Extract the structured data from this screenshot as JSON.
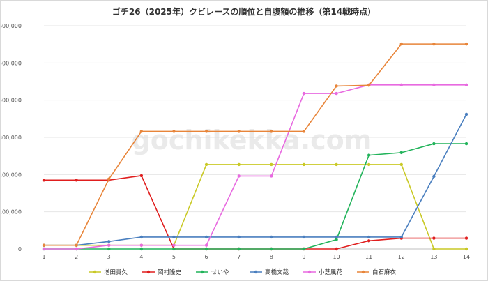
{
  "chart_data": {
    "type": "line",
    "title": "ゴチ26（2025年）クビレースの順位と自腹額の推移（第14戦時点）",
    "xlabel": "",
    "ylabel": "",
    "x": [
      1,
      2,
      3,
      4,
      5,
      6,
      7,
      8,
      9,
      10,
      11,
      12,
      13,
      14
    ],
    "ylim": [
      0,
      600000
    ],
    "y_ticks": [
      "0",
      "100,000",
      "200,000",
      "300,000",
      "400,000",
      "500,000",
      "600,000"
    ],
    "grid": "horizontal",
    "legend_position": "bottom",
    "watermark": "gochikekka.com",
    "series": [
      {
        "name": "増田貴久",
        "color": "#c9c926",
        "values": [
          10000,
          10000,
          10000,
          10000,
          10000,
          227000,
          227000,
          227000,
          227000,
          227000,
          227000,
          227000,
          0,
          0
        ]
      },
      {
        "name": "岡村隆史",
        "color": "#e01e1e",
        "values": [
          185000,
          185000,
          185000,
          197000,
          0,
          0,
          0,
          0,
          0,
          0,
          22000,
          29000,
          29000,
          29000
        ]
      },
      {
        "name": "せいや",
        "color": "#21b35a",
        "values": [
          0,
          0,
          0,
          0,
          0,
          0,
          0,
          0,
          0,
          25000,
          252000,
          259000,
          283000,
          283000
        ]
      },
      {
        "name": "高橋文哉",
        "color": "#4a7fbf",
        "values": [
          10000,
          10000,
          20000,
          32000,
          32000,
          32000,
          32000,
          32000,
          32000,
          32000,
          32000,
          32000,
          195000,
          362000
        ]
      },
      {
        "name": "小芝風花",
        "color": "#e86ae0",
        "values": [
          0,
          0,
          10000,
          10000,
          10000,
          10000,
          196000,
          196000,
          418000,
          418000,
          441000,
          441000,
          441000,
          441000
        ]
      },
      {
        "name": "白石麻衣",
        "color": "#e8853a",
        "values": [
          10000,
          10000,
          188000,
          316000,
          316000,
          316000,
          316000,
          316000,
          316000,
          438000,
          440000,
          551000,
          551000,
          551000
        ]
      }
    ]
  }
}
